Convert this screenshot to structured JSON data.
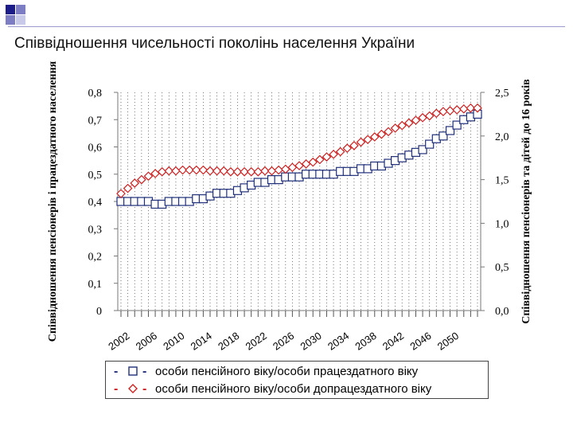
{
  "title": "Співвідношення чисельності поколінь населення України",
  "colors": {
    "series1": "#1f2f7a",
    "series2": "#cc2222",
    "accent": "#1b1b8a"
  },
  "legend": [
    {
      "dash": "-",
      "marker": "square",
      "close": "-",
      "label": "особи пенсійного віку/особи працездатного віку"
    },
    {
      "dash": "-",
      "marker": "diamond",
      "close": "-",
      "label": "особи пенсійного віку/особи допрацездатного віку"
    }
  ],
  "chart_data": {
    "type": "line",
    "title": "",
    "x": [
      2002,
      2003,
      2004,
      2005,
      2006,
      2007,
      2008,
      2009,
      2010,
      2011,
      2012,
      2013,
      2014,
      2015,
      2016,
      2017,
      2018,
      2019,
      2020,
      2021,
      2022,
      2023,
      2024,
      2025,
      2026,
      2027,
      2028,
      2029,
      2030,
      2031,
      2032,
      2033,
      2034,
      2035,
      2036,
      2037,
      2038,
      2039,
      2040,
      2041,
      2042,
      2043,
      2044,
      2045,
      2046,
      2047,
      2048,
      2049,
      2050,
      2051,
      2052,
      2053,
      2054
    ],
    "x_tick_labels": [
      "2002",
      "2006",
      "2010",
      "2014",
      "2018",
      "2022",
      "2026",
      "2030",
      "2034",
      "2038",
      "2042",
      "2046",
      "2050"
    ],
    "ylabel_left": "Співвідношення пенсіонерів і працездатного населення",
    "ylabel_right": "Співвідношення пенсіонерів та дітей до 16 років",
    "y_left": {
      "min": 0,
      "max": 0.8,
      "ticks": [
        "0",
        "0,1",
        "0,2",
        "0,3",
        "0,4",
        "0,5",
        "0,6",
        "0,7",
        "0,8"
      ]
    },
    "y_right": {
      "min": 0,
      "max": 2.5,
      "ticks": [
        "0,0",
        "0,5",
        "1,0",
        "1,5",
        "2,0",
        "2,5"
      ]
    },
    "grid": "vertical-dotted",
    "legend_position": "bottom",
    "series": [
      {
        "name": "особи пенсійного віку/особи працездатного віку",
        "axis": "left",
        "marker": "square",
        "values": [
          0.4,
          0.4,
          0.4,
          0.4,
          0.4,
          0.39,
          0.39,
          0.4,
          0.4,
          0.4,
          0.4,
          0.41,
          0.41,
          0.42,
          0.43,
          0.43,
          0.43,
          0.44,
          0.45,
          0.46,
          0.47,
          0.47,
          0.48,
          0.48,
          0.49,
          0.49,
          0.49,
          0.5,
          0.5,
          0.5,
          0.5,
          0.5,
          0.51,
          0.51,
          0.51,
          0.52,
          0.52,
          0.53,
          0.53,
          0.54,
          0.55,
          0.56,
          0.57,
          0.58,
          0.59,
          0.61,
          0.63,
          0.64,
          0.66,
          0.68,
          0.7,
          0.71,
          0.72
        ]
      },
      {
        "name": "особи пенсійного віку/особи допрацездатного віку",
        "axis": "right",
        "marker": "diamond",
        "values": [
          1.34,
          1.4,
          1.46,
          1.5,
          1.54,
          1.57,
          1.59,
          1.6,
          1.6,
          1.61,
          1.61,
          1.61,
          1.61,
          1.6,
          1.6,
          1.6,
          1.59,
          1.59,
          1.59,
          1.59,
          1.59,
          1.6,
          1.6,
          1.61,
          1.62,
          1.64,
          1.66,
          1.68,
          1.7,
          1.73,
          1.76,
          1.79,
          1.82,
          1.86,
          1.89,
          1.93,
          1.96,
          1.99,
          2.02,
          2.05,
          2.09,
          2.12,
          2.15,
          2.18,
          2.21,
          2.23,
          2.26,
          2.28,
          2.29,
          2.3,
          2.31,
          2.32,
          2.32
        ]
      }
    ]
  }
}
